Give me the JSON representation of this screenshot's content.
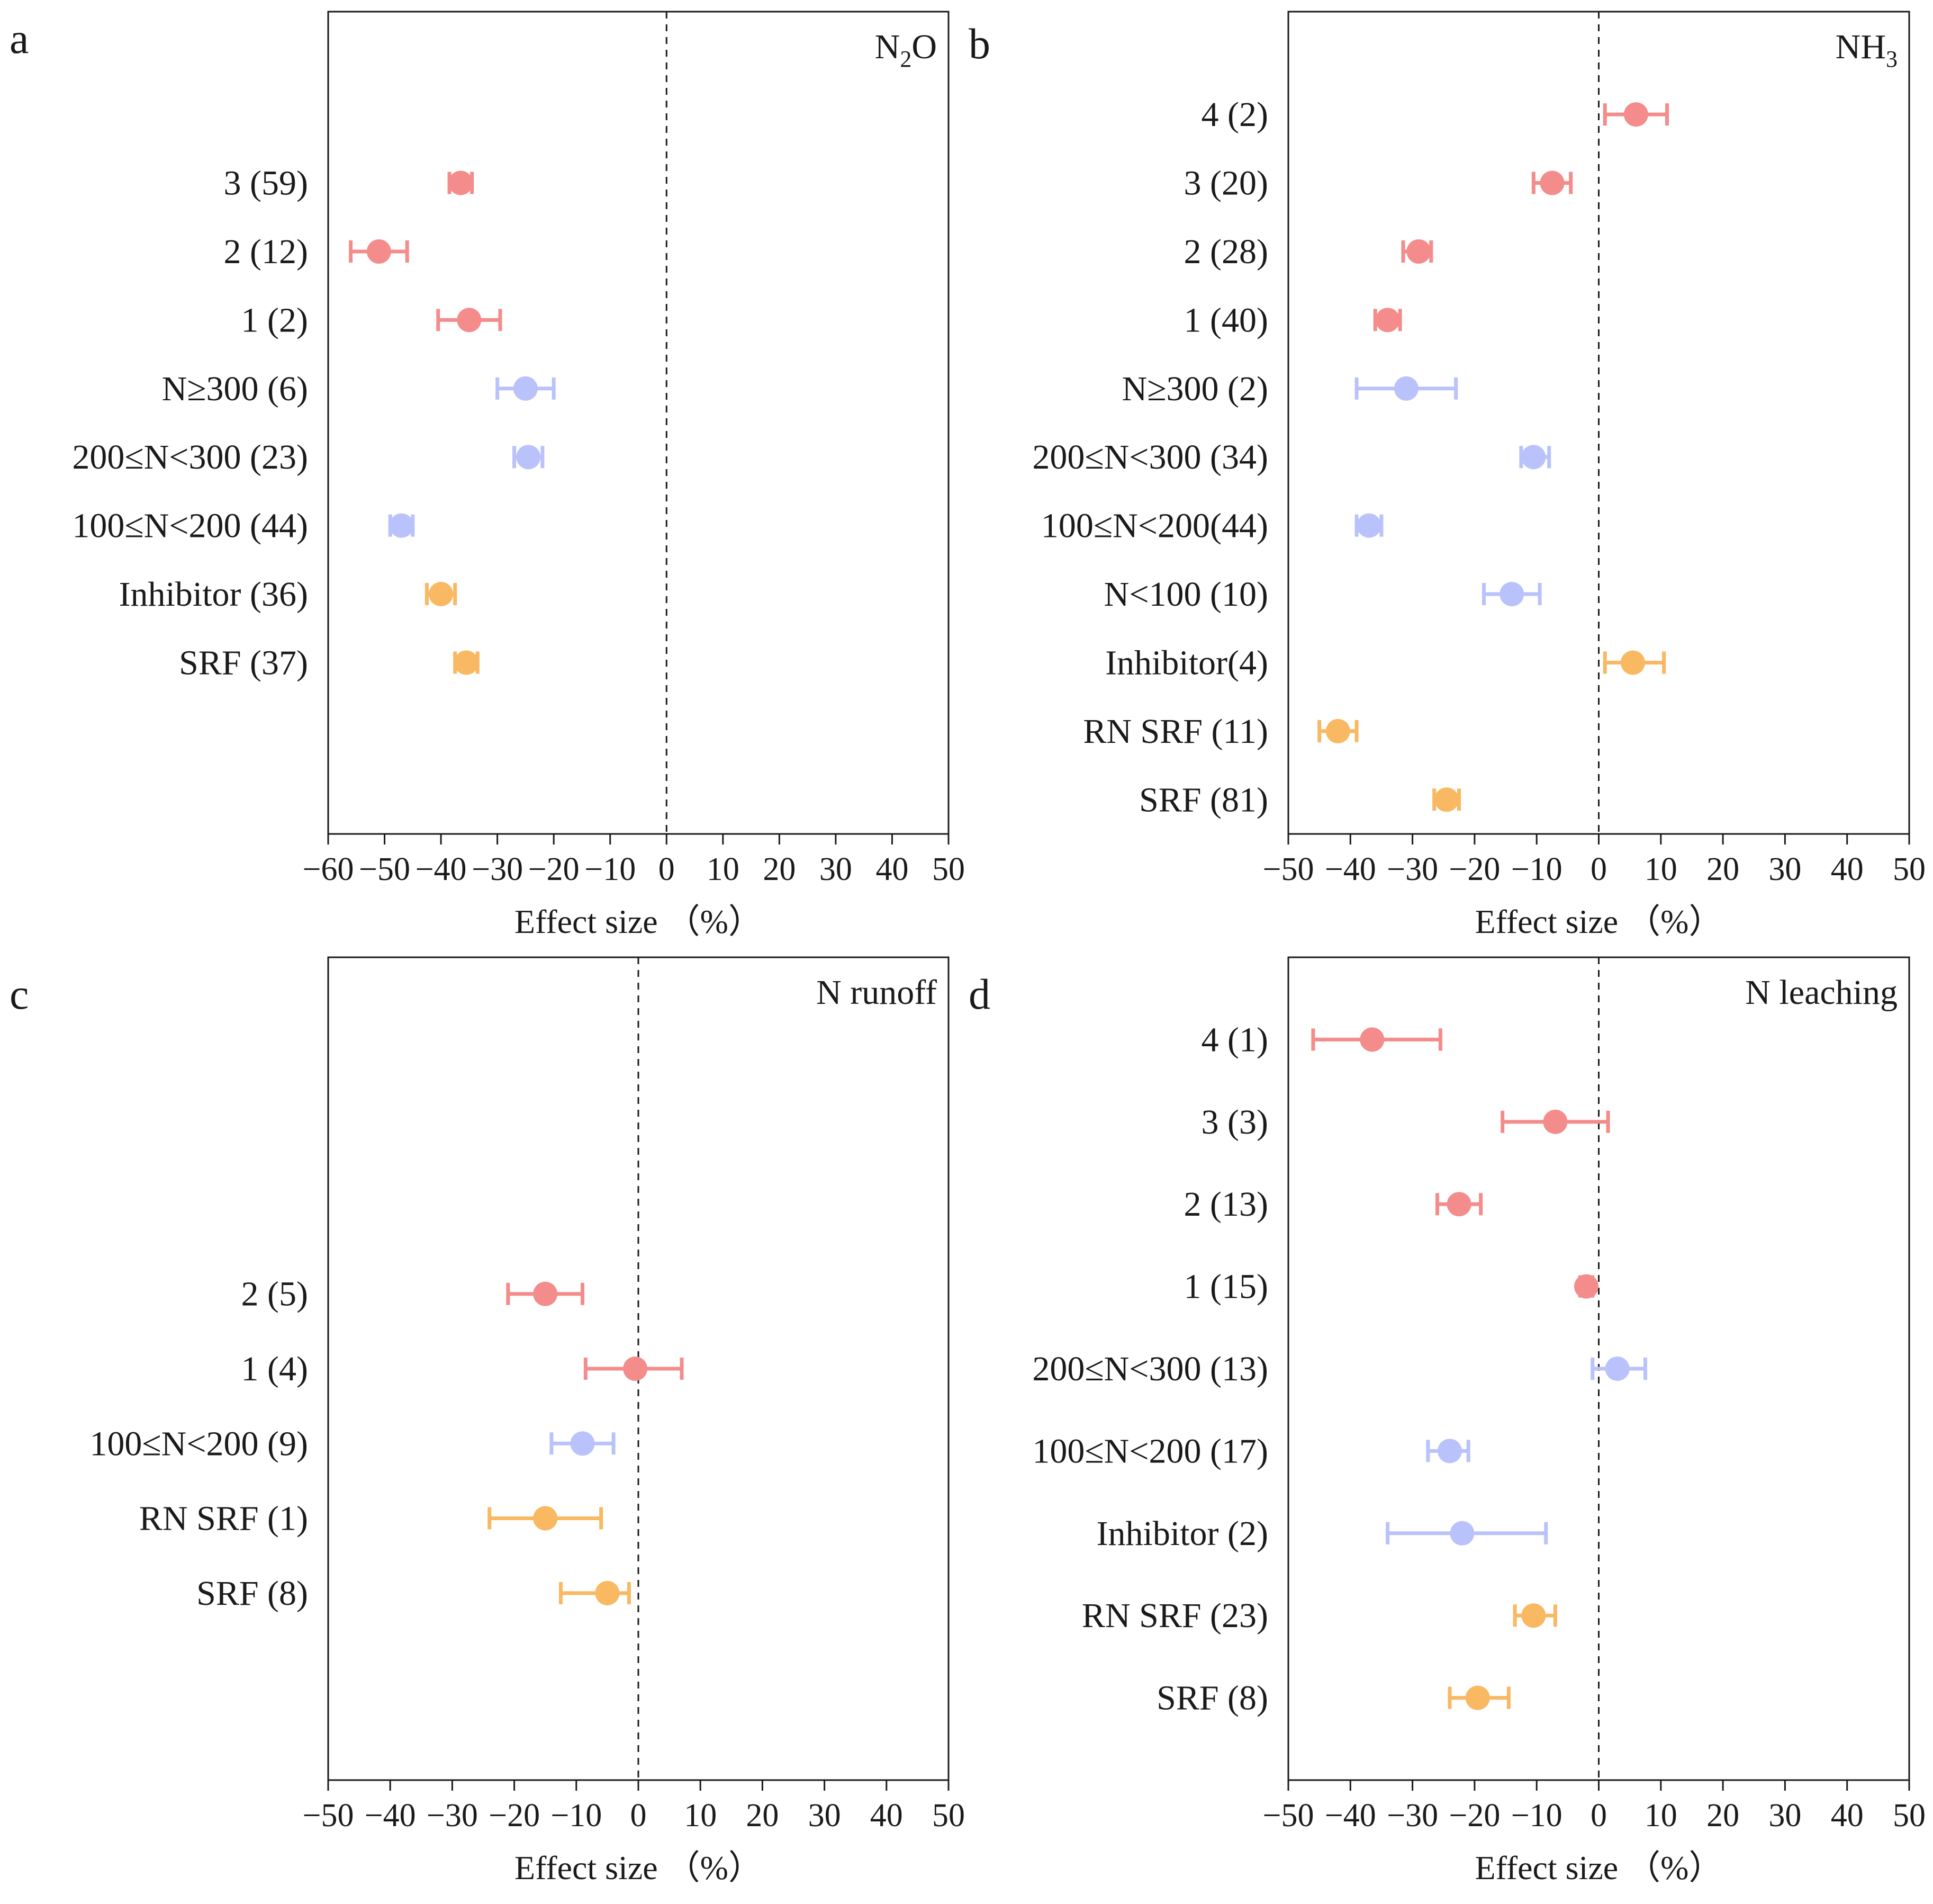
{
  "colors": {
    "rounds": "#f48c8c",
    "rate": "#b9c2fb",
    "type": "#f9b862",
    "axis": "#1a1a1a"
  },
  "chart_data": [
    {
      "panel": "a",
      "type": "scatter",
      "subtype": "forest-plot",
      "title": "N2O",
      "title_main": "N",
      "title_sub": "2",
      "title_tail": "O",
      "xlabel": "Effect size （%）",
      "xlim": [
        -60,
        50
      ],
      "xticks": [
        -60,
        -50,
        -40,
        -30,
        -20,
        -10,
        0,
        10,
        20,
        30,
        40,
        50
      ],
      "xtick_labels": [
        "−60",
        "−50",
        "−40",
        "−30",
        "−20",
        "−10",
        "0",
        "10",
        "20",
        "30",
        "40",
        "50"
      ],
      "n_slots": 12,
      "points": [
        {
          "label": "3 (59)",
          "slot": 2,
          "group": "rounds",
          "value": -36.5,
          "low": -38.5,
          "high": -34.5
        },
        {
          "label": "2 (12)",
          "slot": 3,
          "group": "rounds",
          "value": -51,
          "low": -56,
          "high": -46
        },
        {
          "label": "1 (2)",
          "slot": 4,
          "group": "rounds",
          "value": -35,
          "low": -40.5,
          "high": -29.5
        },
        {
          "label": "N≥300 (6)",
          "slot": 5,
          "group": "rate",
          "value": -25,
          "low": -30,
          "high": -20
        },
        {
          "label": "200≤N<300 (23)",
          "slot": 6,
          "group": "rate",
          "value": -24.5,
          "low": -27,
          "high": -22
        },
        {
          "label": "100≤N<200 (44)",
          "slot": 7,
          "group": "rate",
          "value": -47,
          "low": -49,
          "high": -45
        },
        {
          "label": "Inhibitor (36)",
          "slot": 8,
          "group": "type",
          "value": -40,
          "low": -42.5,
          "high": -37.5
        },
        {
          "label": "SRF (37)",
          "slot": 9,
          "group": "type",
          "value": -35.5,
          "low": -37.5,
          "high": -33.5
        }
      ]
    },
    {
      "panel": "b",
      "type": "scatter",
      "subtype": "forest-plot",
      "title": "NH3",
      "title_main": "NH",
      "title_sub": "3",
      "title_tail": "",
      "xlabel": "Effect size （%）",
      "xlim": [
        -50,
        50
      ],
      "xticks": [
        -50,
        -40,
        -30,
        -20,
        -10,
        0,
        10,
        20,
        30,
        40,
        50
      ],
      "xtick_labels": [
        "−50",
        "−40",
        "−30",
        "−20",
        "−10",
        "0",
        "10",
        "20",
        "30",
        "40",
        "50"
      ],
      "n_slots": 12,
      "points": [
        {
          "label": "4 (2)",
          "slot": 1,
          "group": "rounds",
          "value": 6,
          "low": 1,
          "high": 11
        },
        {
          "label": "3 (20)",
          "slot": 2,
          "group": "rounds",
          "value": -7.5,
          "low": -10.5,
          "high": -4.5
        },
        {
          "label": "2 (28)",
          "slot": 3,
          "group": "rounds",
          "value": -29,
          "low": -31.5,
          "high": -27
        },
        {
          "label": "1 (40)",
          "slot": 4,
          "group": "rounds",
          "value": -34,
          "low": -36,
          "high": -32
        },
        {
          "label": "N≥300 (2)",
          "slot": 5,
          "group": "rate",
          "value": -31,
          "low": -39,
          "high": -23
        },
        {
          "label": "200≤N<300 (34)",
          "slot": 6,
          "group": "rate",
          "value": -10.5,
          "low": -12.5,
          "high": -8
        },
        {
          "label": "100≤N<200(44)",
          "slot": 7,
          "group": "rate",
          "value": -37,
          "low": -39,
          "high": -35
        },
        {
          "label": "N<100 (10)",
          "slot": 8,
          "group": "rate",
          "value": -14,
          "low": -18.5,
          "high": -9.5
        },
        {
          "label": "Inhibitor(4)",
          "slot": 9,
          "group": "type",
          "value": 5.5,
          "low": 1,
          "high": 10.5
        },
        {
          "label": "RN SRF (11)",
          "slot": 10,
          "group": "type",
          "value": -42,
          "low": -45,
          "high": -39
        },
        {
          "label": "SRF (81)",
          "slot": 11,
          "group": "type",
          "value": -24.5,
          "low": -26.5,
          "high": -22.5
        }
      ]
    },
    {
      "panel": "c",
      "type": "scatter",
      "subtype": "forest-plot",
      "title": "N runoff",
      "title_main": "N runoff",
      "title_sub": "",
      "title_tail": "",
      "xlabel": "Effect size （%）",
      "xlim": [
        -50,
        50
      ],
      "xticks": [
        -50,
        -40,
        -30,
        -20,
        -10,
        0,
        10,
        20,
        30,
        40,
        50
      ],
      "xtick_labels": [
        "−50",
        "−40",
        "−30",
        "−20",
        "−10",
        "0",
        "10",
        "20",
        "30",
        "40",
        "50"
      ],
      "n_slots": 11,
      "points": [
        {
          "label": "2 (5)",
          "slot": 4,
          "group": "rounds",
          "value": -15,
          "low": -21,
          "high": -9
        },
        {
          "label": "1 (4)",
          "slot": 5,
          "group": "rounds",
          "value": -0.5,
          "low": -8.5,
          "high": 7
        },
        {
          "label": "100≤N<200 (9)",
          "slot": 6,
          "group": "rate",
          "value": -9,
          "low": -14,
          "high": -4
        },
        {
          "label": "RN SRF (1)",
          "slot": 7,
          "group": "type",
          "value": -15,
          "low": -24,
          "high": -6
        },
        {
          "label": "SRF (8)",
          "slot": 8,
          "group": "type",
          "value": -5,
          "low": -12.5,
          "high": -1.5
        }
      ]
    },
    {
      "panel": "d",
      "type": "scatter",
      "subtype": "forest-plot",
      "title": "N leaching",
      "title_main": "N leaching",
      "title_sub": "",
      "title_tail": "",
      "xlabel": "Effect size （%）",
      "xlim": [
        -50,
        50
      ],
      "xticks": [
        -50,
        -40,
        -30,
        -20,
        -10,
        0,
        10,
        20,
        30,
        40,
        50
      ],
      "xtick_labels": [
        "−50",
        "−40",
        "−30",
        "−20",
        "−10",
        "0",
        "10",
        "20",
        "30",
        "40",
        "50"
      ],
      "n_slots": 10,
      "points": [
        {
          "label": "4 (1)",
          "slot": 0.5,
          "group": "rounds",
          "value": -36.5,
          "low": -46,
          "high": -25.5
        },
        {
          "label": "3 (3)",
          "slot": 1.5,
          "group": "rounds",
          "value": -7,
          "low": -15.5,
          "high": 1.5
        },
        {
          "label": "2 (13)",
          "slot": 2.5,
          "group": "rounds",
          "value": -22.5,
          "low": -26,
          "high": -19
        },
        {
          "label": "1 (15)",
          "slot": 3.5,
          "group": "rounds",
          "value": -2,
          "low": -3,
          "high": -1
        },
        {
          "label": "200≤N<300 (13)",
          "slot": 4.5,
          "group": "rate",
          "value": 3,
          "low": -1,
          "high": 7.5
        },
        {
          "label": "100≤N<200 (17)",
          "slot": 5.5,
          "group": "rate",
          "value": -24,
          "low": -27.5,
          "high": -21
        },
        {
          "label": "Inhibitor (2)",
          "slot": 6.5,
          "group": "rate",
          "value": -22,
          "low": -34,
          "high": -8.5
        },
        {
          "label": "RN SRF (23)",
          "slot": 7.5,
          "group": "type",
          "value": -10.5,
          "low": -13.5,
          "high": -7
        },
        {
          "label": "SRF (8)",
          "slot": 8.5,
          "group": "type",
          "value": -19.5,
          "low": -24,
          "high": -14.5
        }
      ]
    }
  ]
}
